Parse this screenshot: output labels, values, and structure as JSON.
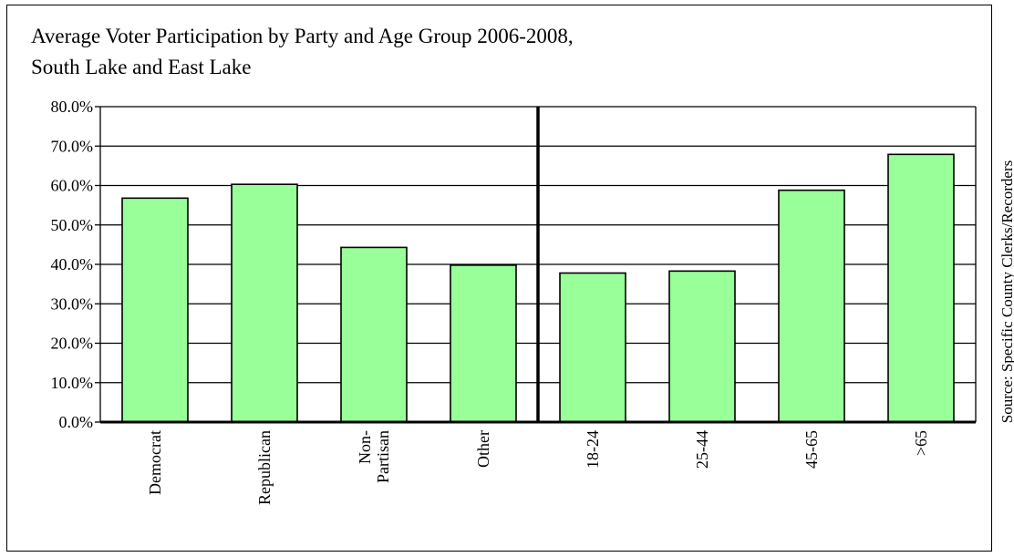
{
  "chart_data": {
    "type": "bar",
    "title": "Average Voter Participation by Party and Age Group 2006-2008,",
    "subtitle": "South Lake and East Lake",
    "source": "Source: Specific County Clerks/Recorders",
    "xlabel": "",
    "ylabel": "",
    "ylim": [
      0,
      80
    ],
    "y_ticks": [
      "0.0%",
      "10.0%",
      "20.0%",
      "30.0%",
      "40.0%",
      "50.0%",
      "60.0%",
      "70.0%",
      "80.0%"
    ],
    "grid": true,
    "legend": "none",
    "categories": [
      "Democrat",
      "Republican",
      "Non-\nPartisan",
      "Other",
      "18-24",
      "25-44",
      "45-65",
      ">65"
    ],
    "values": [
      56.8,
      60.3,
      44.3,
      39.8,
      37.8,
      38.3,
      58.8,
      67.9
    ],
    "divider_after_index": 3,
    "bar_color": "#99ff99",
    "bar_edge_color": "#000000"
  }
}
